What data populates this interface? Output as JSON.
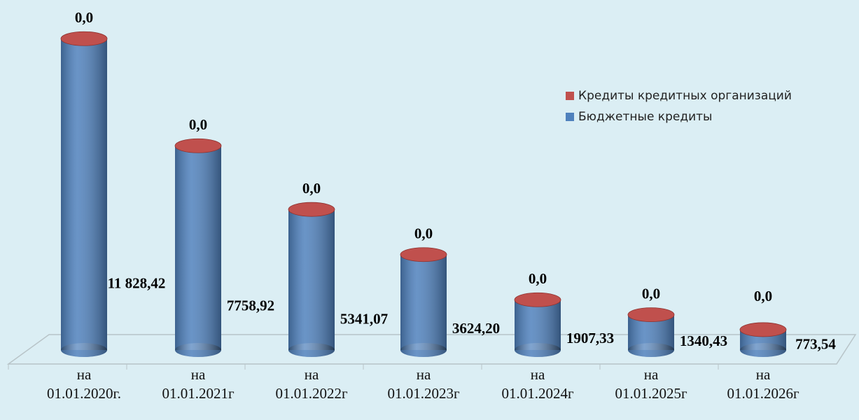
{
  "chart_data": {
    "type": "cylinder-stacked-bar",
    "categories": [
      "на\n01.01.2020г.",
      "на\n01.01.2021г",
      "на\n01.01.2022г",
      "на\n01.01.2023г",
      "на\n01.01.2024г",
      "на\n01.01.2025г",
      "на\n01.01.2026г"
    ],
    "series": [
      {
        "name": "Бюджетные кредиты",
        "color": "#4f81bd",
        "values": [
          11828.42,
          7758.92,
          5341.07,
          3624.2,
          1907.33,
          1340.43,
          773.54
        ],
        "value_labels": [
          "11 828,42",
          "7758,92",
          "5341,07",
          "3624,20",
          "1907,33",
          "1340,43",
          "773,54"
        ]
      },
      {
        "name": "Кредиты кредитных организаций",
        "color": "#c0504d",
        "values": [
          0,
          0,
          0,
          0,
          0,
          0,
          0
        ],
        "value_labels": [
          "0,0",
          "0,0",
          "0,0",
          "0,0",
          "0,0",
          "0,0",
          "0,0"
        ]
      }
    ],
    "legend": "right"
  }
}
